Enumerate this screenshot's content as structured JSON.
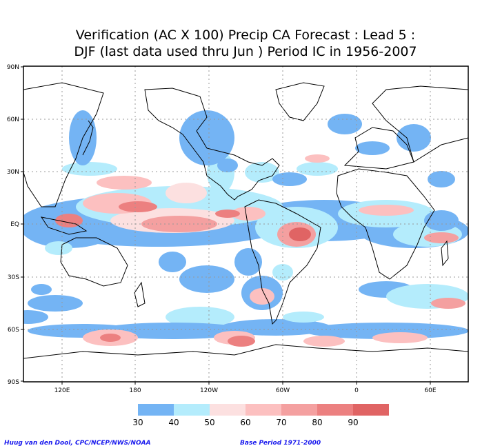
{
  "title_line1": "Verification (AC X 100) Precip CA Forecast : Lead 5 :",
  "title_line2": "DJF (last data used thru Jun ) Period IC in 1956-2007",
  "lat_labels": [
    "90N",
    "60N",
    "30N",
    "EQ",
    "30S",
    "60S",
    "90S"
  ],
  "lon_labels": [
    "120E",
    "180",
    "120W",
    "60W",
    "0",
    "60E"
  ],
  "colorbar": {
    "levels": [
      "30",
      "40",
      "50",
      "60",
      "70",
      "80",
      "90"
    ],
    "colors": [
      "#74b4f4",
      "#b4ecfc",
      "#fce0e0",
      "#fcc0c0",
      "#f4a0a0",
      "#ec8080",
      "#e06464"
    ]
  },
  "credit_left": "Huug van den Dool, CPC/NCEP/NWS/NOAA",
  "credit_right": "Base Period 1971-2000"
}
